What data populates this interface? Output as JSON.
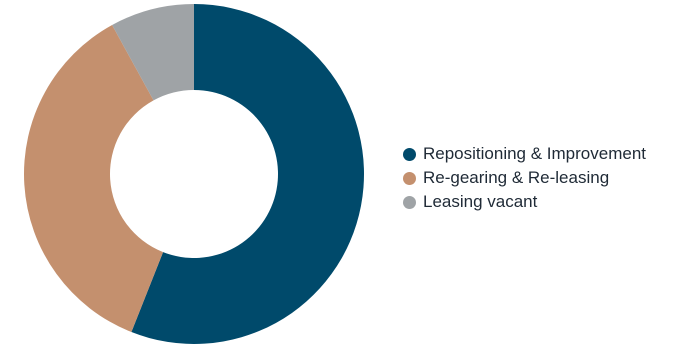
{
  "chart_data": {
    "type": "pie",
    "variant": "donut",
    "title": "",
    "categories": [
      "Repositioning & Improvement",
      "Re-gearing & Re-leasing",
      "Leasing vacant"
    ],
    "values": [
      56,
      36,
      8
    ],
    "colors": [
      "#004a6b",
      "#c4906e",
      "#9fa3a6"
    ],
    "legend": "right"
  }
}
